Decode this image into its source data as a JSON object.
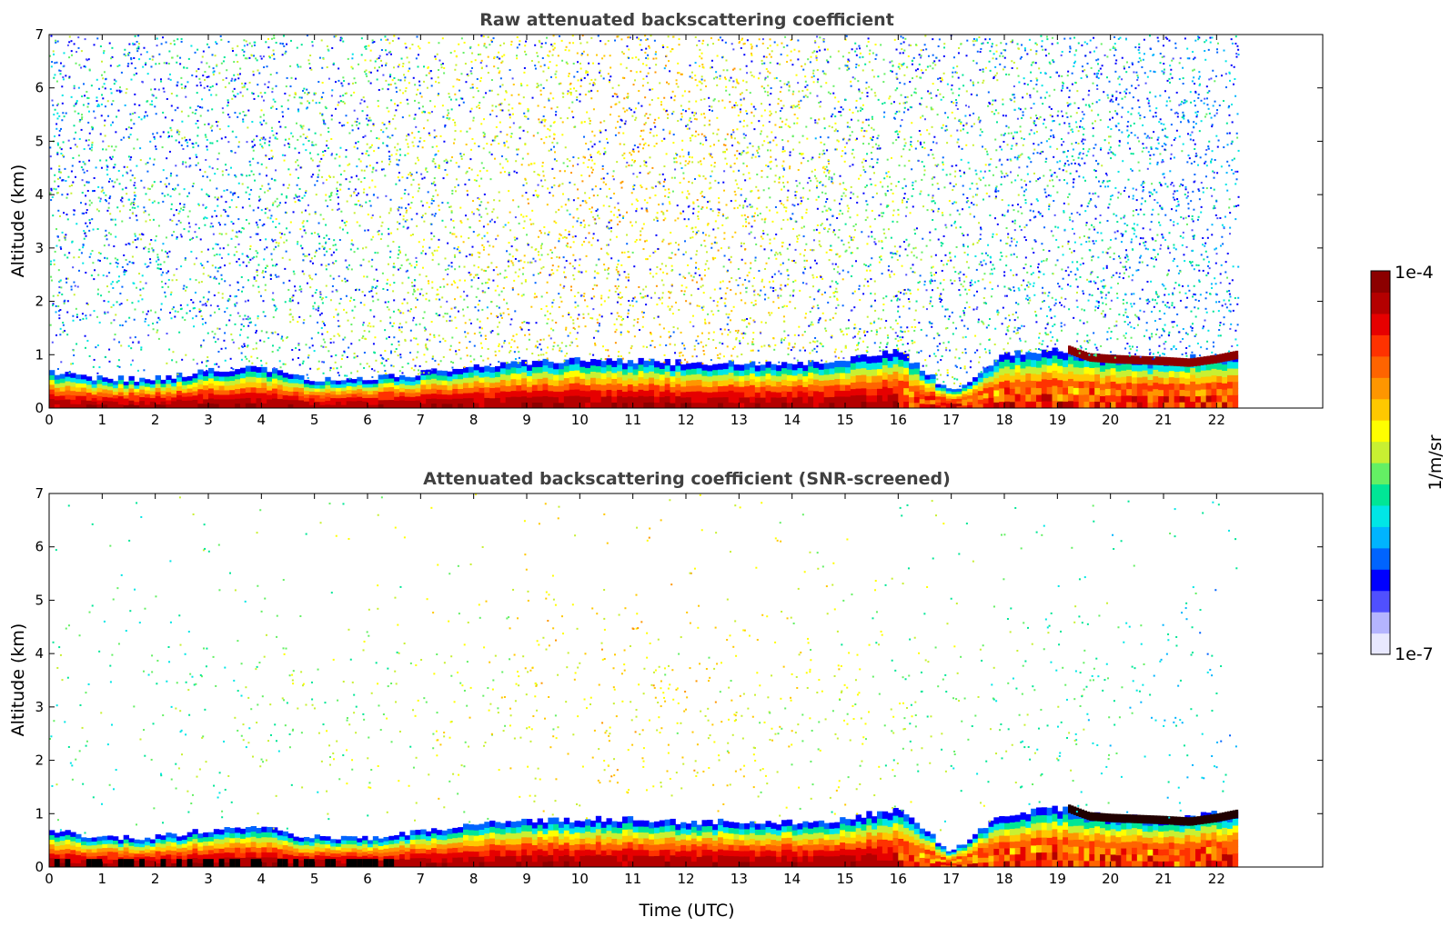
{
  "chart_data": [
    {
      "type": "heatmap",
      "title": "Raw attenuated backscattering coefficient",
      "xlabel": "",
      "ylabel": "Altitude (km)",
      "xlim": [
        0,
        24
      ],
      "ylim": [
        0,
        7
      ],
      "x_ticks": [
        "0",
        "1",
        "2",
        "3",
        "4",
        "5",
        "6",
        "7",
        "8",
        "9",
        "10",
        "11",
        "12",
        "13",
        "14",
        "15",
        "16",
        "17",
        "18",
        "19",
        "20",
        "21",
        "22"
      ],
      "y_ticks": [
        "0",
        "1",
        "2",
        "3",
        "4",
        "5",
        "6",
        "7"
      ],
      "data_end_time": 22.4,
      "screened": false,
      "boundary_layer_top_km": [
        [
          0,
          0.7
        ],
        [
          1,
          0.55
        ],
        [
          2,
          0.55
        ],
        [
          3,
          0.7
        ],
        [
          4,
          0.75
        ],
        [
          5,
          0.55
        ],
        [
          6,
          0.55
        ],
        [
          7,
          0.65
        ],
        [
          8,
          0.8
        ],
        [
          9,
          0.85
        ],
        [
          10,
          0.9
        ],
        [
          11,
          0.9
        ],
        [
          12,
          0.85
        ],
        [
          13,
          0.85
        ],
        [
          14,
          0.85
        ],
        [
          15,
          0.9
        ],
        [
          16,
          1.1
        ],
        [
          17,
          0.3
        ],
        [
          18,
          1.0
        ],
        [
          19,
          1.1
        ],
        [
          20,
          0.95
        ],
        [
          21,
          0.9
        ],
        [
          22,
          1.0
        ]
      ],
      "cloud_layer_km": [
        [
          19.2,
          1.1
        ],
        [
          19.6,
          0.95
        ],
        [
          20,
          0.92
        ],
        [
          20.5,
          0.9
        ],
        [
          21,
          0.88
        ],
        [
          21.5,
          0.85
        ],
        [
          22,
          0.92
        ],
        [
          22.4,
          1.0
        ]
      ]
    },
    {
      "type": "heatmap",
      "title": "Attenuated backscattering coefficient (SNR-screened)",
      "xlabel": "Time (UTC)",
      "ylabel": "Altitude (km)",
      "xlim": [
        0,
        24
      ],
      "ylim": [
        0,
        7
      ],
      "x_ticks": [
        "0",
        "1",
        "2",
        "3",
        "4",
        "5",
        "6",
        "7",
        "8",
        "9",
        "10",
        "11",
        "12",
        "13",
        "14",
        "15",
        "16",
        "17",
        "18",
        "19",
        "20",
        "21",
        "22"
      ],
      "y_ticks": [
        "0",
        "1",
        "2",
        "3",
        "4",
        "5",
        "6",
        "7"
      ],
      "data_end_time": 22.4,
      "screened": true
    }
  ],
  "colorbar": {
    "label": "1/m/sr",
    "min_label": "1e-7",
    "max_label": "1e-4",
    "scale": "log",
    "colors": [
      "#e8e8ff",
      "#b4b4ff",
      "#5050ff",
      "#0000ff",
      "#0064ff",
      "#00b4ff",
      "#00e6e6",
      "#00e696",
      "#64f064",
      "#c8f032",
      "#ffff00",
      "#ffc800",
      "#ff9600",
      "#ff6400",
      "#ff3200",
      "#e60000",
      "#b40000",
      "#8c0000"
    ]
  }
}
